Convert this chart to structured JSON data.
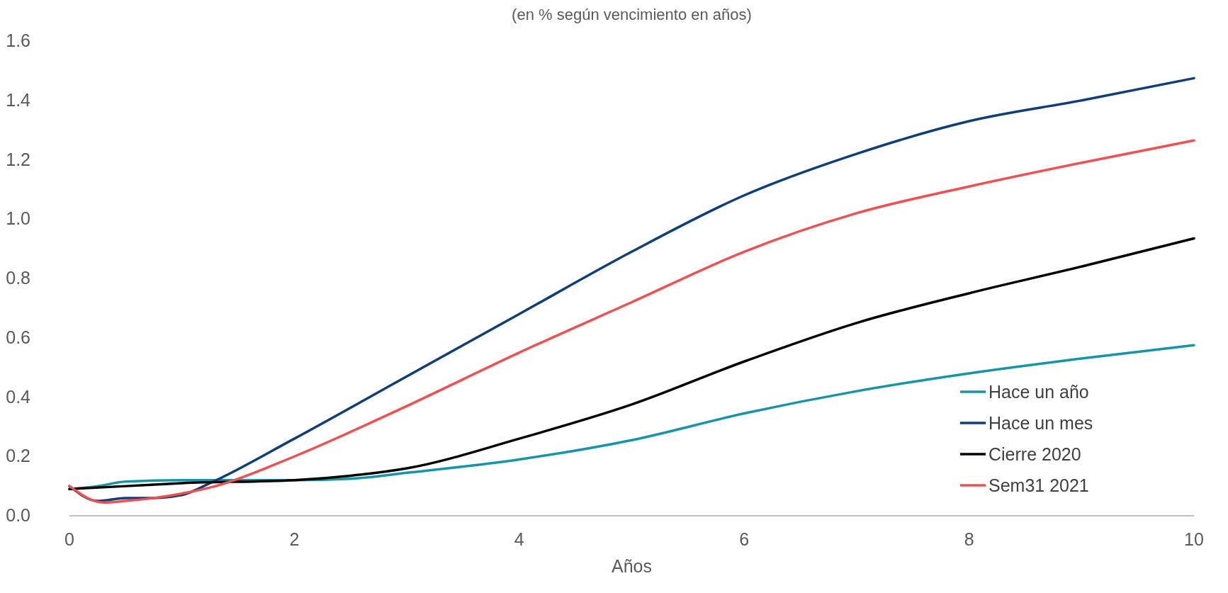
{
  "chart_data": {
    "type": "line",
    "subtitle": "(en % según vencimiento en años)",
    "xlabel": "Años",
    "xlim": [
      0,
      10
    ],
    "xticks": [
      0,
      2,
      4,
      6,
      8,
      10
    ],
    "ylim": [
      0,
      1.6
    ],
    "yticks": [
      {
        "value": 0,
        "label": "0.0"
      },
      {
        "value": 0.2,
        "label": "0.2"
      },
      {
        "value": 0.4,
        "label": "0.4"
      },
      {
        "value": 0.6,
        "label": "0.6"
      },
      {
        "value": 0.8,
        "label": "0.8"
      },
      {
        "value": 1,
        "label": "1.0"
      },
      {
        "value": 1.2,
        "label": "1.2"
      },
      {
        "value": 1.4,
        "label": "1.4"
      },
      {
        "value": 1.6,
        "label": "1.6"
      }
    ],
    "grid": false,
    "legend": "bottom right",
    "marker": "none",
    "line_style": "solid",
    "series": [
      {
        "name": "Hace un año",
        "color": "#1596a8",
        "x": [
          0,
          0.25,
          0.5,
          1,
          2,
          2.5,
          3,
          4,
          5,
          6,
          7,
          8,
          9,
          10
        ],
        "values": [
          0.09,
          0.1,
          0.115,
          0.12,
          0.12,
          0.125,
          0.145,
          0.19,
          0.255,
          0.345,
          0.42,
          0.48,
          0.53,
          0.575
        ]
      },
      {
        "name": "Hace un mes",
        "color": "#0e3f7a",
        "x": [
          0,
          0.25,
          0.5,
          0.75,
          1,
          1.25,
          2,
          3,
          4,
          5,
          6,
          7,
          8,
          9,
          10
        ],
        "values": [
          0.1,
          0.05,
          0.06,
          0.06,
          0.07,
          0.11,
          0.26,
          0.47,
          0.68,
          0.89,
          1.08,
          1.22,
          1.33,
          1.4,
          1.475
        ]
      },
      {
        "name": "Cierre 2020",
        "color": "#000000",
        "x": [
          0,
          0.5,
          1,
          2,
          2.5,
          3,
          4,
          5,
          6,
          7,
          8,
          9,
          10
        ],
        "values": [
          0.09,
          0.1,
          0.11,
          0.12,
          0.135,
          0.16,
          0.26,
          0.375,
          0.52,
          0.65,
          0.75,
          0.84,
          0.935
        ]
      },
      {
        "name": "Sem31 2021",
        "color": "#f25050",
        "x": [
          0,
          0.3,
          0.5,
          0.75,
          1,
          1.3,
          2,
          3,
          4,
          5,
          6,
          7,
          8,
          9,
          10
        ],
        "values": [
          0.1,
          0.045,
          0.05,
          0.06,
          0.075,
          0.1,
          0.2,
          0.37,
          0.55,
          0.72,
          0.89,
          1.02,
          1.11,
          1.19,
          1.265
        ]
      }
    ]
  }
}
